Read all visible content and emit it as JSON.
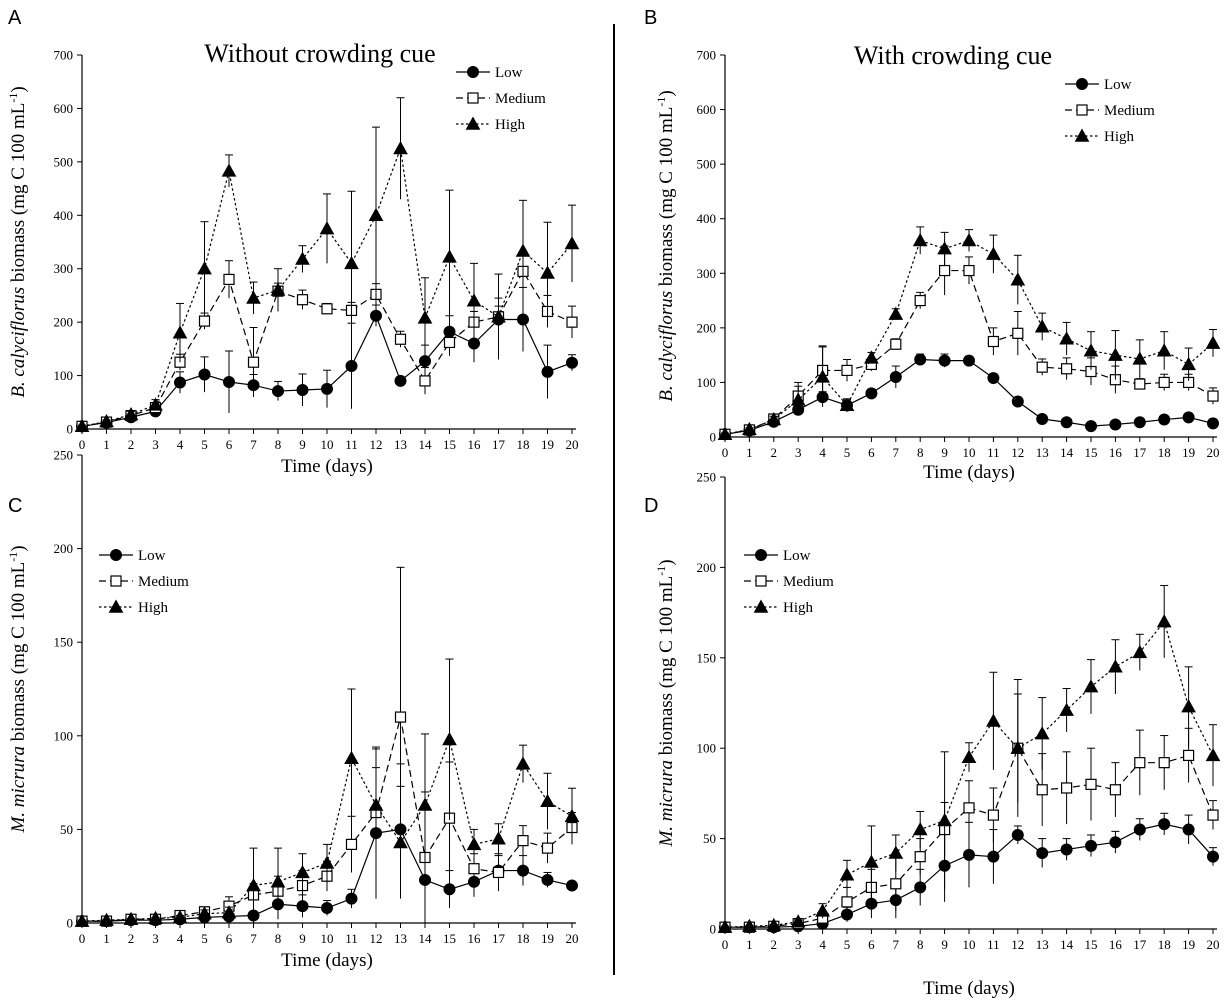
{
  "colors": {
    "axis": "#000000",
    "marker_open_fill": "#ffffff",
    "ink": "#000000"
  },
  "chart_data": [
    {
      "panel": "A",
      "type": "line",
      "title": "Without crowding cue",
      "xlabel": "Time (days)",
      "ylabel": {
        "italic": "B. calyciflorus",
        "rest": " biomass (mg C 100 mL",
        "sup": "-1",
        "close": ")"
      },
      "ylim": [
        0,
        700
      ],
      "yticks": [
        0,
        100,
        200,
        300,
        400,
        500,
        600,
        700
      ],
      "xlim": [
        0,
        20
      ],
      "x": [
        0,
        1,
        2,
        3,
        4,
        5,
        6,
        7,
        8,
        9,
        10,
        11,
        12,
        13,
        14,
        15,
        16,
        17,
        18,
        19,
        20
      ],
      "legend": "top-right",
      "series": [
        {
          "name": "Low",
          "marker": "circle",
          "line": "solid",
          "values": [
            5,
            12,
            22,
            33,
            87,
            102,
            88,
            82,
            71,
            73,
            75,
            118,
            212,
            90,
            127,
            182,
            160,
            205,
            205,
            107,
            124
          ],
          "errors": [
            2,
            3,
            4,
            8,
            20,
            33,
            58,
            20,
            18,
            30,
            35,
            80,
            20,
            8,
            30,
            30,
            35,
            40,
            60,
            50,
            15
          ]
        },
        {
          "name": "Medium",
          "marker": "square-open",
          "line": "dashed",
          "values": [
            5,
            13,
            25,
            40,
            125,
            202,
            280,
            125,
            258,
            242,
            225,
            222,
            252,
            168,
            90,
            162,
            200,
            210,
            295,
            220,
            200
          ],
          "errors": [
            2,
            3,
            5,
            8,
            15,
            15,
            35,
            65,
            15,
            18,
            10,
            15,
            20,
            15,
            25,
            25,
            20,
            20,
            30,
            30,
            30
          ]
        },
        {
          "name": "High",
          "marker": "triangle",
          "line": "dotted",
          "values": [
            5,
            14,
            27,
            45,
            180,
            300,
            483,
            245,
            260,
            318,
            375,
            310,
            400,
            525,
            208,
            322,
            240,
            210,
            333,
            292,
            347
          ],
          "errors": [
            2,
            3,
            6,
            10,
            55,
            88,
            30,
            30,
            40,
            25,
            65,
            135,
            165,
            95,
            75,
            125,
            70,
            80,
            95,
            95,
            72
          ]
        }
      ]
    },
    {
      "panel": "B",
      "type": "line",
      "title": "With crowding cue",
      "xlabel": "Time (days)",
      "ylabel": {
        "italic": "B. calyciflorus",
        "rest": " biomass (mg C 100 mL",
        "sup": "-1",
        "close": ")"
      },
      "ylim": [
        0,
        700
      ],
      "yticks": [
        0,
        100,
        200,
        300,
        400,
        500,
        600,
        700
      ],
      "xlim": [
        0,
        20
      ],
      "x": [
        0,
        1,
        2,
        3,
        4,
        5,
        6,
        7,
        8,
        9,
        10,
        11,
        12,
        13,
        14,
        15,
        16,
        17,
        18,
        19,
        20
      ],
      "legend": "top-right",
      "series": [
        {
          "name": "Low",
          "marker": "circle",
          "line": "solid",
          "values": [
            5,
            12,
            28,
            50,
            73,
            58,
            80,
            110,
            142,
            140,
            140,
            108,
            65,
            33,
            27,
            20,
            23,
            27,
            32,
            36,
            25
          ],
          "errors": [
            2,
            3,
            4,
            6,
            10,
            12,
            8,
            20,
            10,
            12,
            8,
            8,
            8,
            5,
            5,
            4,
            4,
            4,
            4,
            5,
            8
          ]
        },
        {
          "name": "Medium",
          "marker": "square-open",
          "line": "dashed",
          "values": [
            5,
            13,
            33,
            75,
            122,
            122,
            133,
            170,
            250,
            305,
            305,
            175,
            190,
            128,
            125,
            120,
            105,
            97,
            100,
            100,
            75
          ],
          "errors": [
            2,
            3,
            5,
            25,
            45,
            20,
            12,
            10,
            15,
            45,
            25,
            25,
            40,
            15,
            20,
            25,
            25,
            10,
            15,
            15,
            15
          ]
        },
        {
          "name": "High",
          "marker": "triangle",
          "line": "dotted",
          "values": [
            5,
            14,
            32,
            68,
            110,
            58,
            145,
            225,
            360,
            345,
            360,
            335,
            288,
            202,
            180,
            158,
            150,
            143,
            158,
            133,
            172
          ],
          "errors": [
            2,
            3,
            6,
            25,
            55,
            10,
            10,
            10,
            25,
            30,
            20,
            35,
            45,
            25,
            30,
            35,
            45,
            35,
            35,
            30,
            25
          ]
        }
      ]
    },
    {
      "panel": "C",
      "type": "line",
      "title": "",
      "xlabel": "Time (days)",
      "ylabel": {
        "italic": "M. micrura",
        "rest": " biomass (mg C 100 mL",
        "sup": "-1",
        "close": ")"
      },
      "ylim": [
        0,
        250
      ],
      "yticks": [
        0,
        50,
        100,
        150,
        200,
        250
      ],
      "xlim": [
        0,
        20
      ],
      "x": [
        0,
        1,
        2,
        3,
        4,
        5,
        6,
        7,
        8,
        9,
        10,
        11,
        12,
        13,
        14,
        15,
        16,
        17,
        18,
        19,
        20
      ],
      "legend": "top-left",
      "series": [
        {
          "name": "Low",
          "marker": "circle",
          "line": "solid",
          "values": [
            1,
            1,
            1.5,
            1.5,
            2,
            3,
            3.5,
            4,
            10,
            9,
            8,
            13,
            48,
            50,
            23,
            18,
            22,
            28,
            28,
            23,
            20
          ],
          "errors": [
            0.5,
            0.5,
            0.5,
            0.5,
            0.5,
            1,
            2,
            2,
            8,
            6,
            4,
            5,
            35,
            35,
            10,
            10,
            8,
            8,
            8,
            4,
            2
          ]
        },
        {
          "name": "Medium",
          "marker": "square-open",
          "line": "dashed",
          "values": [
            1,
            1,
            2,
            2,
            4,
            6,
            9,
            15,
            17,
            20,
            25,
            42,
            59,
            110,
            35,
            56,
            29,
            27,
            44,
            40,
            51
          ],
          "errors": [
            0.5,
            0.5,
            0.5,
            0.5,
            1,
            2,
            5,
            6,
            8,
            8,
            8,
            15,
            35,
            80,
            35,
            30,
            8,
            10,
            8,
            8,
            8
          ]
        },
        {
          "name": "High",
          "marker": "triangle",
          "line": "dotted",
          "values": [
            1,
            1.5,
            2,
            2.5,
            3,
            5,
            5.5,
            20,
            22,
            27,
            32,
            88,
            63,
            43,
            63,
            98,
            42,
            45,
            85,
            65,
            57
          ],
          "errors": [
            0.5,
            0.5,
            0.5,
            0.5,
            1,
            2,
            3,
            20,
            18,
            10,
            10,
            37,
            30,
            30,
            38,
            43,
            8,
            8,
            10,
            15,
            15
          ]
        }
      ]
    },
    {
      "panel": "D",
      "type": "line",
      "title": "",
      "xlabel": "Time (days)",
      "ylabel": {
        "italic": "M. micrura",
        "rest": " biomass (mg C 100 mL",
        "sup": "-1",
        "close": ")"
      },
      "ylim": [
        0,
        250
      ],
      "yticks": [
        0,
        50,
        100,
        150,
        200,
        250
      ],
      "xlim": [
        0,
        20
      ],
      "x": [
        0,
        1,
        2,
        3,
        4,
        5,
        6,
        7,
        8,
        9,
        10,
        11,
        12,
        13,
        14,
        15,
        16,
        17,
        18,
        19,
        20
      ],
      "legend": "top-left",
      "series": [
        {
          "name": "Low",
          "marker": "circle",
          "line": "solid",
          "values": [
            1,
            1,
            1,
            1.5,
            3,
            8,
            14,
            16,
            23,
            35,
            41,
            40,
            52,
            42,
            44,
            46,
            48,
            55,
            58,
            55,
            40
          ],
          "errors": [
            0.5,
            0.5,
            0.5,
            0.5,
            1,
            4,
            8,
            10,
            10,
            20,
            18,
            15,
            5,
            8,
            6,
            6,
            6,
            6,
            6,
            8,
            5
          ]
        },
        {
          "name": "Medium",
          "marker": "square-open",
          "line": "dashed",
          "values": [
            1,
            1,
            1.5,
            3,
            6,
            15,
            23,
            25,
            40,
            55,
            67,
            63,
            100,
            77,
            78,
            80,
            77,
            92,
            92,
            96,
            63
          ],
          "errors": [
            0.5,
            0.5,
            0.5,
            1,
            3,
            8,
            10,
            15,
            10,
            15,
            15,
            15,
            30,
            20,
            20,
            20,
            15,
            18,
            15,
            15,
            8
          ]
        },
        {
          "name": "High",
          "marker": "triangle",
          "line": "dotted",
          "values": [
            1,
            1.5,
            2,
            4,
            10,
            30,
            37,
            42,
            55,
            60,
            95,
            115,
            100,
            108,
            121,
            134,
            145,
            153,
            170,
            123,
            96
          ],
          "errors": [
            0.5,
            0.5,
            0.5,
            1,
            4,
            8,
            20,
            10,
            10,
            38,
            8,
            27,
            38,
            20,
            12,
            15,
            15,
            10,
            20,
            22,
            17
          ]
        }
      ]
    }
  ]
}
